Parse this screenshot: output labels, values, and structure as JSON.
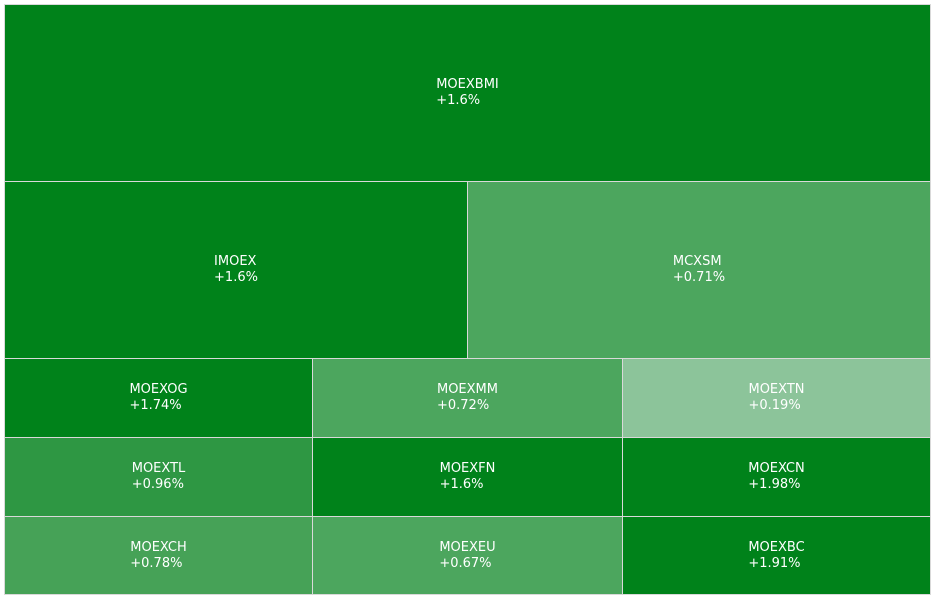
{
  "chart_data": {
    "type": "treemap",
    "tiles": [
      {
        "name": "MOEXBMI",
        "change": "+1.6%",
        "value": 1.6,
        "color": "#00821a"
      },
      {
        "name": "IMOEX",
        "change": "+1.6%",
        "value": 1.6,
        "color": "#00821a"
      },
      {
        "name": "MCXSM",
        "change": "+0.71%",
        "value": 0.71,
        "color": "#4ca65e"
      },
      {
        "name": "MOEXOG",
        "change": "+1.74%",
        "value": 1.74,
        "color": "#00821a"
      },
      {
        "name": "MOEXMM",
        "change": "+0.72%",
        "value": 0.72,
        "color": "#4ca65e"
      },
      {
        "name": "MOEXTN",
        "change": "+0.19%",
        "value": 0.19,
        "color": "#8cc49a"
      },
      {
        "name": "MOEXTL",
        "change": "+0.96%",
        "value": 0.96,
        "color": "#2e9743"
      },
      {
        "name": "MOEXFN",
        "change": "+1.6%",
        "value": 1.6,
        "color": "#00821a"
      },
      {
        "name": "MOEXCN",
        "change": "+1.98%",
        "value": 1.98,
        "color": "#00821a"
      },
      {
        "name": "MOEXCH",
        "change": "+0.78%",
        "value": 0.78,
        "color": "#46a257"
      },
      {
        "name": "MOEXEU",
        "change": "+0.67%",
        "value": 0.67,
        "color": "#4ca65e"
      },
      {
        "name": "MOEXBC",
        "change": "+1.91%",
        "value": 1.91,
        "color": "#00821a"
      }
    ]
  }
}
